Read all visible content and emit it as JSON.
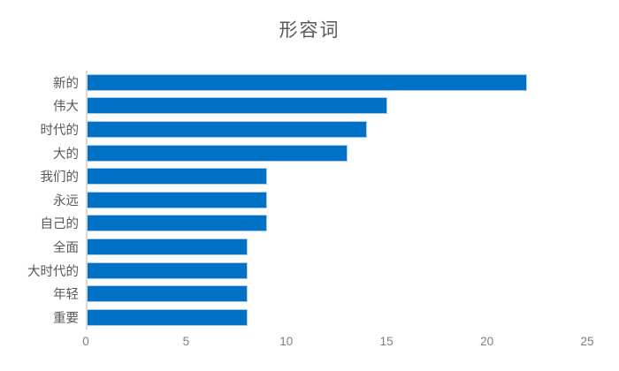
{
  "title": "形容词",
  "colors": {
    "background": "#FFFFFF",
    "bar_fill": "#0171C5",
    "bar_border": "#A9CCE9",
    "title_text": "#595959",
    "category_text": "#595959",
    "tick_text": "#7F7F7F",
    "axis_line": "#D9D9D9"
  },
  "chart_data": {
    "type": "bar",
    "orientation": "horizontal",
    "title": "形容词",
    "categories": [
      "新的",
      "伟大",
      "时代的",
      "大的",
      "我们的",
      "永远",
      "自己的",
      "全面",
      "大时代的",
      "年轻",
      "重要"
    ],
    "values": [
      22,
      15,
      14,
      13,
      9,
      9,
      9,
      8,
      8,
      8,
      8
    ],
    "xlabel": "",
    "ylabel": "",
    "xlim": [
      0,
      25
    ],
    "x_ticks": [
      "0",
      "5",
      "10",
      "15",
      "20",
      "25"
    ],
    "grid": false,
    "legend": false
  }
}
